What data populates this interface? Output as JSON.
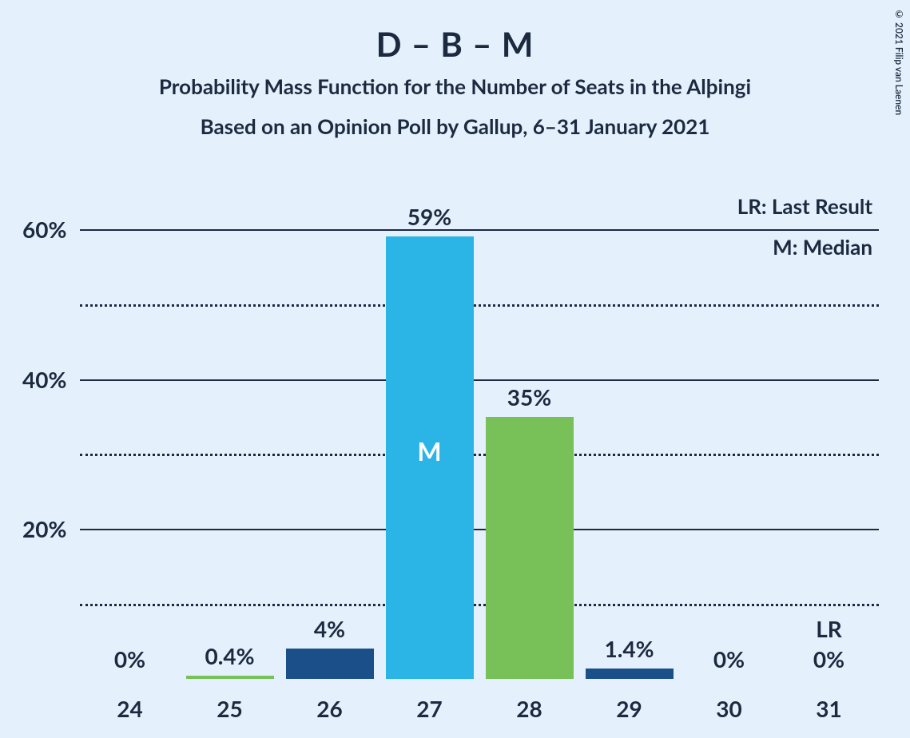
{
  "background_color": "#e4f0fb",
  "text_color": "#1b2a3f",
  "copyright": "© 2021 Filip van Laenen",
  "title_main": "D – B – M",
  "title_sub1": "Probability Mass Function for the Number of Seats in the Alþingi",
  "title_sub2": "Based on an Opinion Poll by Gallup, 6–31 January 2021",
  "legend": {
    "lr": "LR: Last Result",
    "m": "M: Median"
  },
  "chart": {
    "type": "bar",
    "categories": [
      "24",
      "25",
      "26",
      "27",
      "28",
      "29",
      "30",
      "31"
    ],
    "values": [
      0,
      0.4,
      4,
      59,
      35,
      1.4,
      0,
      0
    ],
    "value_labels": [
      "0%",
      "0.4%",
      "4%",
      "59%",
      "35%",
      "1.4%",
      "0%",
      "0%"
    ],
    "bar_colors": [
      "#1b4f8a",
      "#78c158",
      "#1b4f8a",
      "#2bb4e6",
      "#78c158",
      "#1b4f8a",
      "#78c158",
      "#1b4f8a"
    ],
    "median_index": 3,
    "median_marker": "M",
    "median_marker_color": "#ffffff",
    "lr_index": 7,
    "lr_marker": "LR",
    "ylim": [
      0,
      65
    ],
    "y_major_ticks": [
      20,
      40,
      60
    ],
    "y_minor_ticks": [
      10,
      30,
      50
    ],
    "grid_color": "#1b2a3f",
    "bar_width_ratio": 0.88,
    "label_fontsize": 28,
    "title_fontsize": 42,
    "subtitle_fontsize": 26,
    "value_label_fontsize": 28,
    "x_label_fontsize": 28
  }
}
